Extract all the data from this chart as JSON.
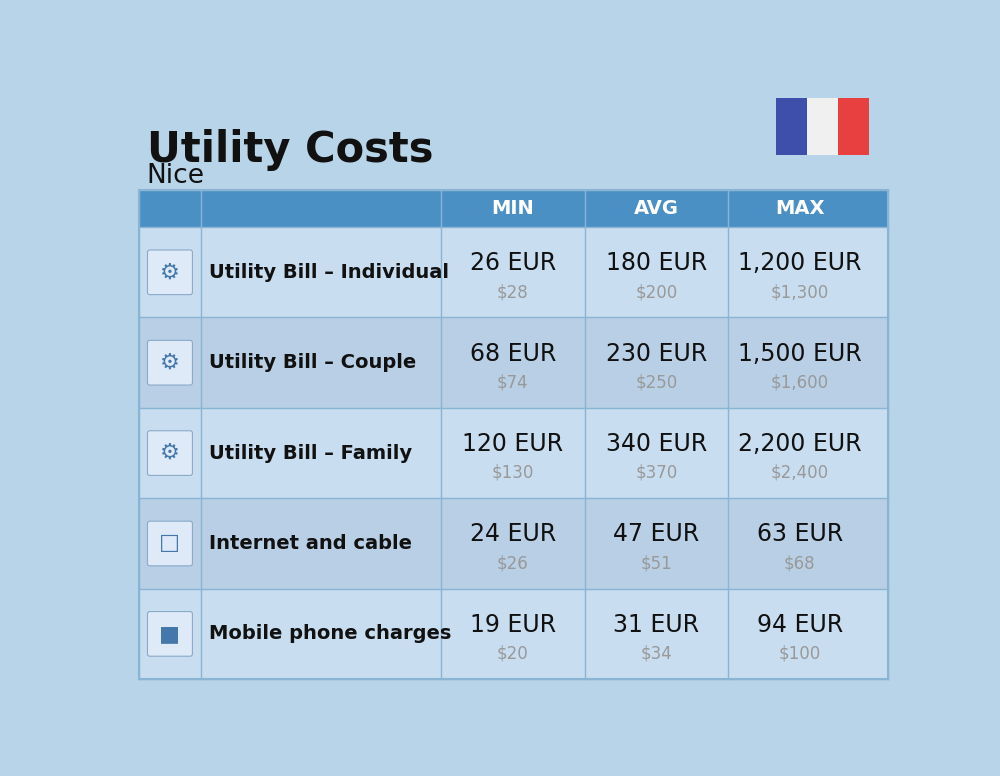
{
  "title": "Utility Costs",
  "subtitle": "Nice",
  "background_color": "#b8d4e8",
  "header_bg_color": "#4a90c4",
  "row_bg_color_even": "#c8ddf0",
  "row_bg_color_odd": "#b8cfe6",
  "header_text_color": "#ffffff",
  "label_text_color": "#111111",
  "value_text_color": "#111111",
  "sub_value_text_color": "#999999",
  "grid_line_color": "#8ab4d4",
  "columns": [
    "MIN",
    "AVG",
    "MAX"
  ],
  "rows": [
    {
      "label": "Utility Bill – Individual",
      "min_eur": "26 EUR",
      "min_usd": "$28",
      "avg_eur": "180 EUR",
      "avg_usd": "$200",
      "max_eur": "1,200 EUR",
      "max_usd": "$1,300"
    },
    {
      "label": "Utility Bill – Couple",
      "min_eur": "68 EUR",
      "min_usd": "$74",
      "avg_eur": "230 EUR",
      "avg_usd": "$250",
      "max_eur": "1,500 EUR",
      "max_usd": "$1,600"
    },
    {
      "label": "Utility Bill – Family",
      "min_eur": "120 EUR",
      "min_usd": "$130",
      "avg_eur": "340 EUR",
      "avg_usd": "$370",
      "max_eur": "2,200 EUR",
      "max_usd": "$2,400"
    },
    {
      "label": "Internet and cable",
      "min_eur": "24 EUR",
      "min_usd": "$26",
      "avg_eur": "47 EUR",
      "avg_usd": "$51",
      "max_eur": "63 EUR",
      "max_usd": "$68"
    },
    {
      "label": "Mobile phone charges",
      "min_eur": "19 EUR",
      "min_usd": "$20",
      "avg_eur": "31 EUR",
      "avg_usd": "$34",
      "max_eur": "94 EUR",
      "max_usd": "$100"
    }
  ],
  "flag_blue": "#3d4faa",
  "flag_white": "#f0f0f0",
  "flag_red": "#e84040",
  "title_fontsize": 30,
  "subtitle_fontsize": 19,
  "header_fontsize": 14,
  "label_fontsize": 14,
  "value_fontsize": 17,
  "sub_value_fontsize": 12
}
